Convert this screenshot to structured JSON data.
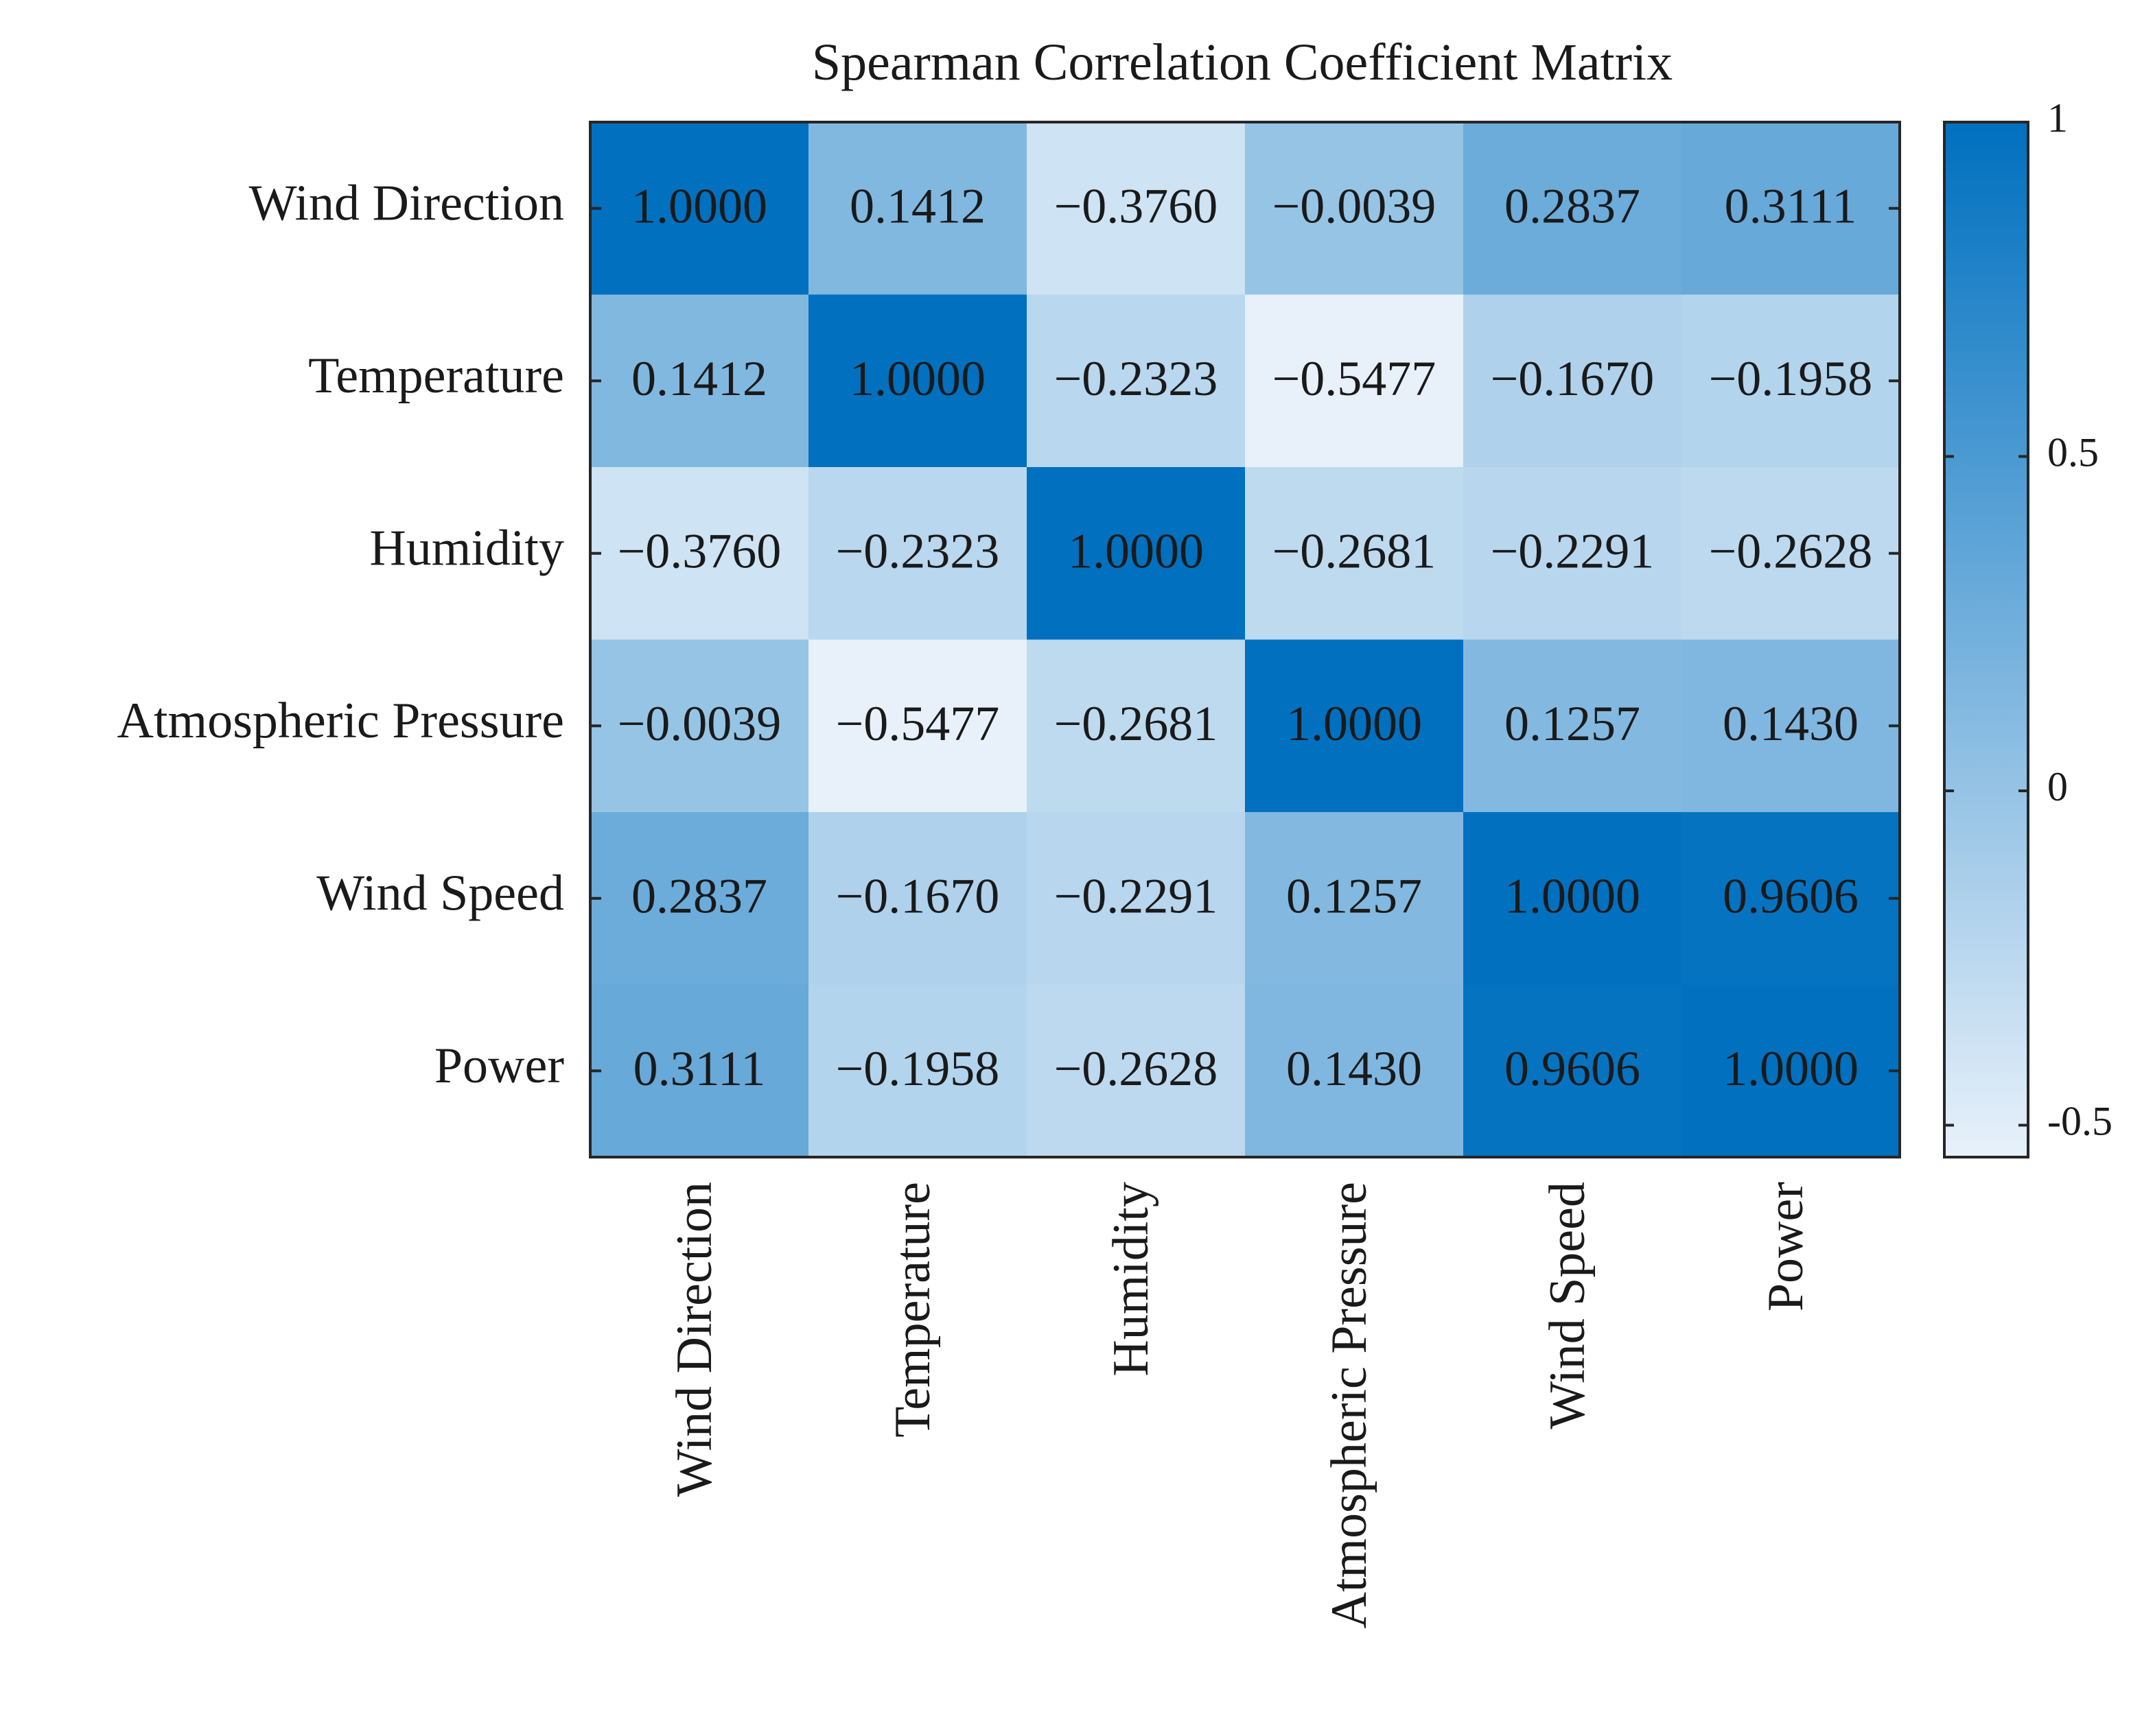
{
  "chart_data": {
    "type": "heatmap",
    "title": "Spearman Correlation Coefficient Matrix",
    "row_labels": [
      "Wind Direction",
      "Temperature",
      "Humidity",
      "Atmospheric Pressure",
      "Wind Speed",
      "Power"
    ],
    "col_labels": [
      "Wind Direction",
      "Temperature",
      "Humidity",
      "Atmospheric Pressure",
      "Wind Speed",
      "Power"
    ],
    "values": [
      [
        1.0,
        0.1412,
        -0.376,
        -0.0039,
        0.2837,
        0.3111
      ],
      [
        0.1412,
        1.0,
        -0.2323,
        -0.5477,
        -0.167,
        -0.1958
      ],
      [
        -0.376,
        -0.2323,
        1.0,
        -0.2681,
        -0.2291,
        -0.2628
      ],
      [
        -0.0039,
        -0.5477,
        -0.2681,
        1.0,
        0.1257,
        0.143
      ],
      [
        0.2837,
        -0.167,
        -0.2291,
        0.1257,
        1.0,
        0.9606
      ],
      [
        0.3111,
        -0.1958,
        -0.2628,
        0.143,
        0.9606,
        1.0
      ]
    ],
    "value_labels": [
      [
        "1.0000",
        "0.1412",
        "−0.3760",
        "−0.0039",
        "0.2837",
        "0.3111"
      ],
      [
        "0.1412",
        "1.0000",
        "−0.2323",
        "−0.5477",
        "−0.1670",
        "−0.1958"
      ],
      [
        "−0.3760",
        "−0.2323",
        "1.0000",
        "−0.2681",
        "−0.2291",
        "−0.2628"
      ],
      [
        "−0.0039",
        "−0.5477",
        "−0.2681",
        "1.0000",
        "0.1257",
        "0.1430"
      ],
      [
        "0.2837",
        "−0.1670",
        "−0.2291",
        "0.1257",
        "1.0000",
        "0.9606"
      ],
      [
        "0.3111",
        "−0.1958",
        "−0.2628",
        "0.1430",
        "0.9606",
        "1.0000"
      ]
    ],
    "colorbar": {
      "min": -0.5477,
      "max": 1.0,
      "ticks": [
        1,
        0.5,
        0,
        -0.5
      ],
      "tick_labels": [
        "1",
        "0.5",
        "0",
        "-0.5"
      ],
      "color_low": "#e8f1fa",
      "color_high": "#0070bf"
    },
    "xlabel": "",
    "ylabel": ""
  }
}
